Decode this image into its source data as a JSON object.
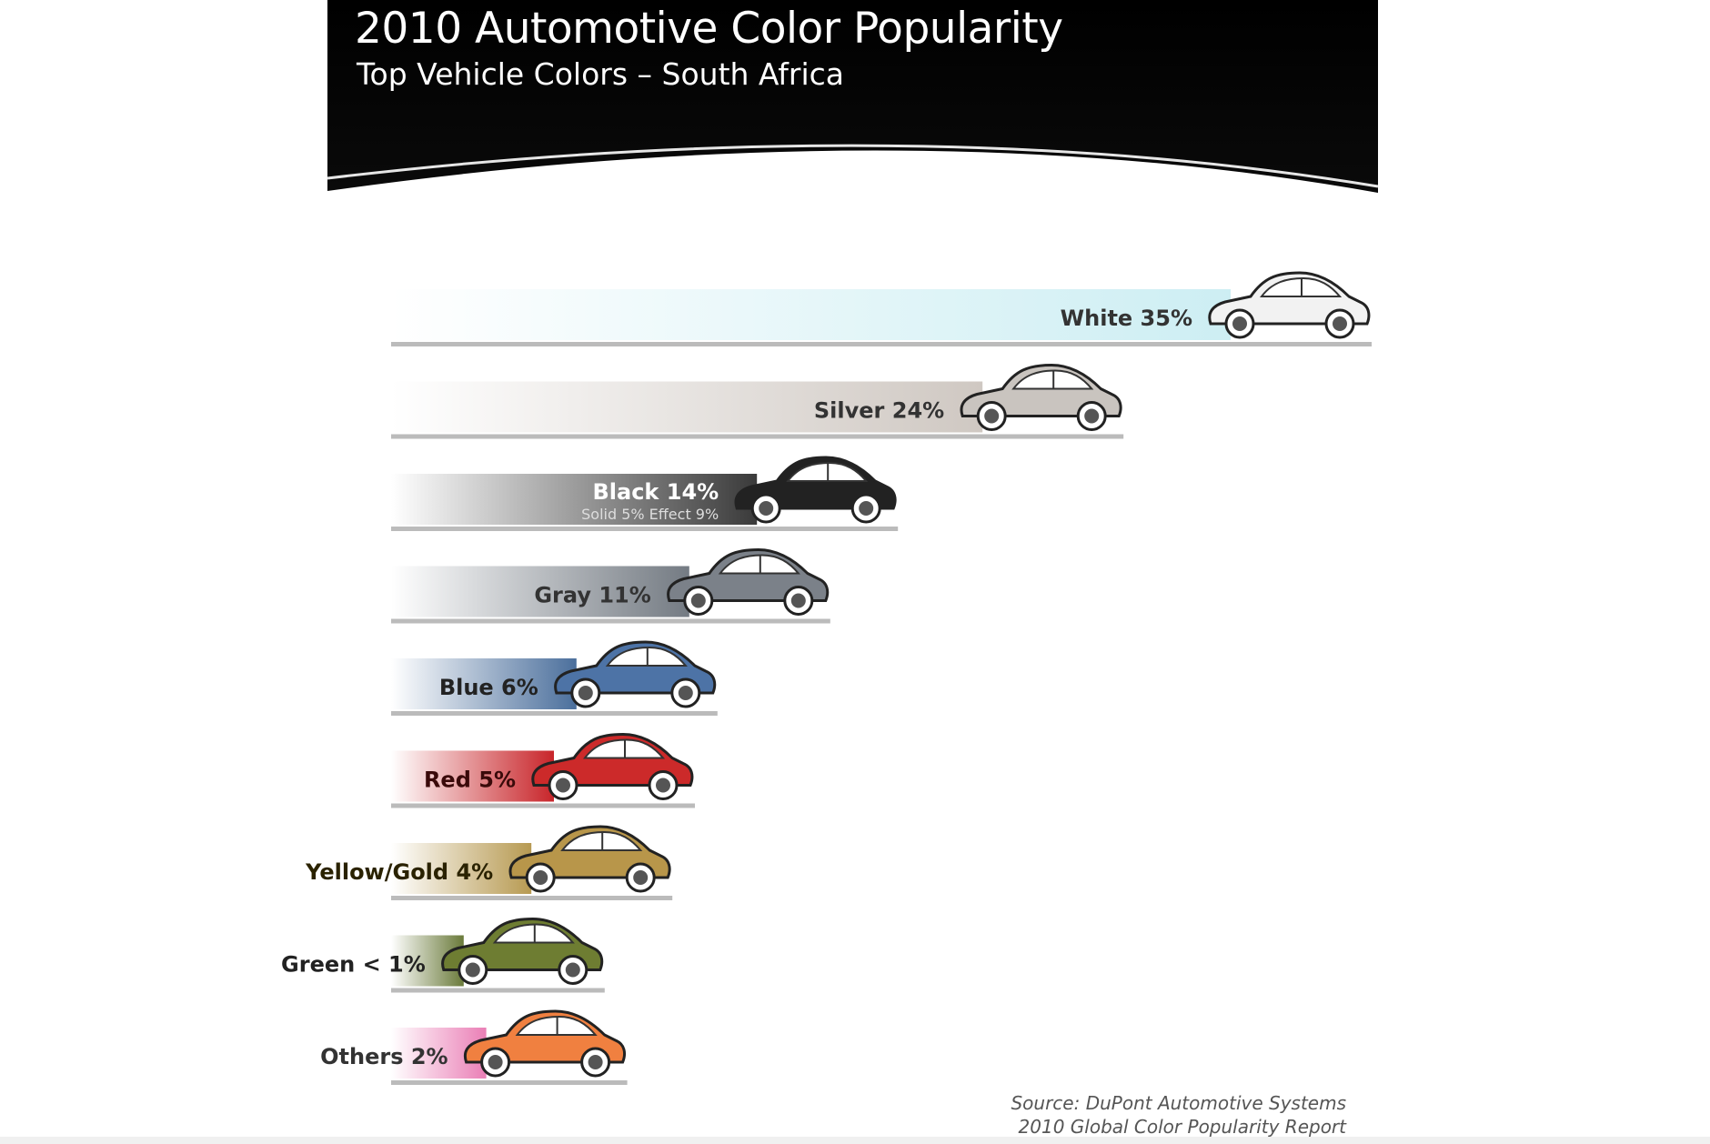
{
  "header": {
    "title": "2010 Automotive Color Popularity",
    "subtitle": "Top Vehicle Colors – South Africa"
  },
  "chart_data": {
    "type": "bar",
    "orientation": "horizontal",
    "title": "2010 Automotive Color Popularity",
    "subtitle": "Top Vehicle Colors – South Africa",
    "unit": "%",
    "categories": [
      "White",
      "Silver",
      "Black",
      "Gray",
      "Blue",
      "Red",
      "Yellow/Gold",
      "Green",
      "Others"
    ],
    "labels": [
      "White 35%",
      "Silver 24%",
      "Black 14%",
      "Gray 11%",
      "Blue 6%",
      "Red 5%",
      "Yellow/Gold 4%",
      "Green < 1%",
      "Others 2%"
    ],
    "values": [
      35,
      24,
      14,
      11,
      6,
      5,
      4,
      1,
      2
    ],
    "colors": [
      "#cdeef3",
      "#cfc8c2",
      "#3a3a3a",
      "#747b83",
      "#4b6f9c",
      "#c8252a",
      "#b79a52",
      "#6a7a3a",
      "#ea7fb6"
    ],
    "car_colors": [
      "#f2f2f2",
      "#c9c4bf",
      "#222222",
      "#7b8189",
      "#4d73a6",
      "#cc2a2a",
      "#b8964a",
      "#6e7d32",
      "#f08040"
    ],
    "label_colors": [
      "#333333",
      "#333333",
      "#ffffff",
      "#333333",
      "#222222",
      "#3a0a0a",
      "#2a2200",
      "#222222",
      "#333333"
    ],
    "sub_labels": [
      "",
      "",
      "Solid 5%   Effect 9%",
      "",
      "",
      "",
      "",
      "",
      ""
    ]
  },
  "source": {
    "line1": "Source: DuPont Automotive Systems",
    "line2": "2010 Global Color Popularity Report"
  }
}
